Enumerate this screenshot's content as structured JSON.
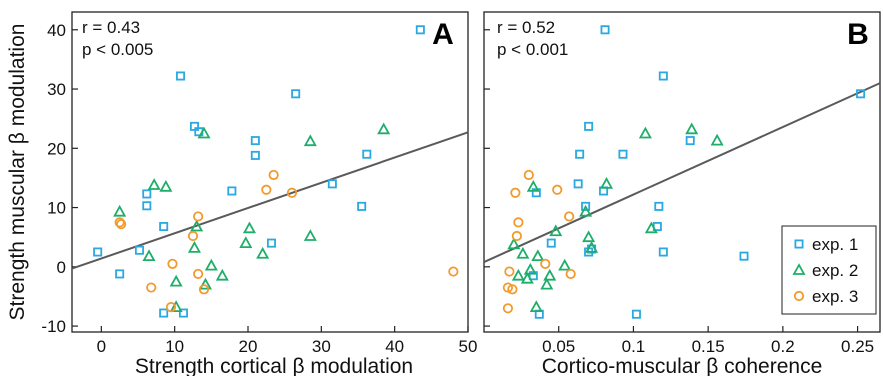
{
  "legend": [
    {
      "label": "exp. 1",
      "marker": "square",
      "color": "#29a9e0"
    },
    {
      "label": "exp. 2",
      "marker": "triangle",
      "color": "#1fae6a"
    },
    {
      "label": "exp. 3",
      "marker": "circle",
      "color": "#f39a2d"
    }
  ],
  "line_color": "#5a5a5a",
  "chart_data": [
    {
      "type": "scatter",
      "panel_label": "A",
      "title": "",
      "xlabel": "Strength cortical β modulation",
      "ylabel": "Strength muscular β modulation",
      "annotation": [
        "r = 0.43",
        "p < 0.005"
      ],
      "xlim": [
        -4,
        50
      ],
      "ylim": [
        -11,
        43
      ],
      "xticks": [
        0,
        10,
        20,
        30,
        40,
        50
      ],
      "yticks": [
        -10,
        0,
        10,
        20,
        30,
        40
      ],
      "fit_line": {
        "x": [
          -4,
          50
        ],
        "y": [
          -0.3,
          22.7
        ]
      },
      "series": [
        {
          "name": "exp. 1",
          "points": [
            [
              -0.5,
              2.5
            ],
            [
              2.5,
              -1.2
            ],
            [
              5.2,
              2.8
            ],
            [
              6.2,
              10.3
            ],
            [
              6.2,
              12.3
            ],
            [
              8.5,
              6.8
            ],
            [
              8.5,
              -7.8
            ],
            [
              10.8,
              32.2
            ],
            [
              11.2,
              -7.8
            ],
            [
              12.7,
              23.7
            ],
            [
              13.3,
              22.8
            ],
            [
              17.8,
              12.8
            ],
            [
              21.0,
              21.3
            ],
            [
              21.0,
              18.8
            ],
            [
              23.2,
              4.0
            ],
            [
              26.5,
              29.2
            ],
            [
              31.5,
              14.0
            ],
            [
              35.5,
              10.2
            ],
            [
              36.2,
              19.0
            ],
            [
              43.5,
              40.0
            ]
          ]
        },
        {
          "name": "exp. 2",
          "points": [
            [
              2.5,
              9.3
            ],
            [
              6.5,
              1.8
            ],
            [
              7.2,
              13.8
            ],
            [
              8.8,
              13.5
            ],
            [
              10.2,
              -6.8
            ],
            [
              10.2,
              -2.5
            ],
            [
              12.7,
              3.2
            ],
            [
              13.0,
              6.8
            ],
            [
              14.0,
              22.5
            ],
            [
              14.2,
              -3.0
            ],
            [
              15.0,
              0.2
            ],
            [
              16.5,
              -1.5
            ],
            [
              19.7,
              4.0
            ],
            [
              20.2,
              6.5
            ],
            [
              22.0,
              2.2
            ],
            [
              28.5,
              21.2
            ],
            [
              28.5,
              5.2
            ],
            [
              38.5,
              23.2
            ]
          ]
        },
        {
          "name": "exp. 3",
          "points": [
            [
              2.5,
              7.5
            ],
            [
              2.7,
              7.2
            ],
            [
              6.8,
              -3.5
            ],
            [
              9.5,
              -6.8
            ],
            [
              9.7,
              0.5
            ],
            [
              12.5,
              5.2
            ],
            [
              13.2,
              8.5
            ],
            [
              13.2,
              -1.2
            ],
            [
              14.0,
              -3.8
            ],
            [
              22.5,
              13.0
            ],
            [
              23.5,
              15.5
            ],
            [
              26.0,
              12.5
            ],
            [
              48.0,
              -0.8
            ]
          ]
        }
      ]
    },
    {
      "type": "scatter",
      "panel_label": "B",
      "title": "",
      "xlabel": "Cortico-muscular β coherence",
      "ylabel": "",
      "annotation": [
        "r = 0.52",
        "p < 0.001"
      ],
      "xlim": [
        0.0,
        0.265
      ],
      "ylim": [
        -11,
        43
      ],
      "xticks": [
        "0.05",
        "0.1",
        "0.15",
        "0.2",
        "0.25"
      ],
      "ytick_values": [
        -10,
        0,
        10,
        20,
        30,
        40
      ],
      "xtick_values": [
        0.05,
        0.1,
        0.15,
        0.2,
        0.25
      ],
      "fit_line": {
        "x": [
          0.0,
          0.265
        ],
        "y": [
          0.8,
          31.0
        ]
      },
      "series": [
        {
          "name": "exp. 1",
          "points": [
            [
              0.033,
              -1.5
            ],
            [
              0.035,
              12.5
            ],
            [
              0.037,
              -8.0
            ],
            [
              0.045,
              4.0
            ],
            [
              0.063,
              14.0
            ],
            [
              0.064,
              19.0
            ],
            [
              0.068,
              10.2
            ],
            [
              0.07,
              23.7
            ],
            [
              0.07,
              2.5
            ],
            [
              0.072,
              3.0
            ],
            [
              0.08,
              12.8
            ],
            [
              0.081,
              40.0
            ],
            [
              0.093,
              19.0
            ],
            [
              0.102,
              -8.0
            ],
            [
              0.116,
              6.8
            ],
            [
              0.117,
              10.2
            ],
            [
              0.12,
              32.2
            ],
            [
              0.12,
              2.5
            ],
            [
              0.138,
              21.3
            ],
            [
              0.174,
              1.8
            ],
            [
              0.252,
              29.2
            ]
          ]
        },
        {
          "name": "exp. 2",
          "points": [
            [
              0.02,
              3.8
            ],
            [
              0.023,
              -1.5
            ],
            [
              0.026,
              2.2
            ],
            [
              0.029,
              -2.0
            ],
            [
              0.031,
              -0.5
            ],
            [
              0.033,
              13.5
            ],
            [
              0.035,
              -6.8
            ],
            [
              0.036,
              1.8
            ],
            [
              0.042,
              -3.0
            ],
            [
              0.044,
              -1.5
            ],
            [
              0.048,
              6.0
            ],
            [
              0.054,
              0.2
            ],
            [
              0.068,
              9.3
            ],
            [
              0.07,
              5.0
            ],
            [
              0.072,
              3.2
            ],
            [
              0.082,
              14.0
            ],
            [
              0.108,
              22.5
            ],
            [
              0.112,
              6.5
            ],
            [
              0.139,
              23.2
            ],
            [
              0.156,
              21.3
            ]
          ]
        },
        {
          "name": "exp. 3",
          "points": [
            [
              0.016,
              -3.5
            ],
            [
              0.016,
              -7.0
            ],
            [
              0.017,
              -0.8
            ],
            [
              0.019,
              -3.8
            ],
            [
              0.021,
              12.5
            ],
            [
              0.022,
              5.2
            ],
            [
              0.023,
              7.5
            ],
            [
              0.03,
              15.5
            ],
            [
              0.041,
              0.5
            ],
            [
              0.049,
              13.0
            ],
            [
              0.057,
              8.5
            ],
            [
              0.058,
              -1.2
            ]
          ]
        }
      ]
    }
  ]
}
